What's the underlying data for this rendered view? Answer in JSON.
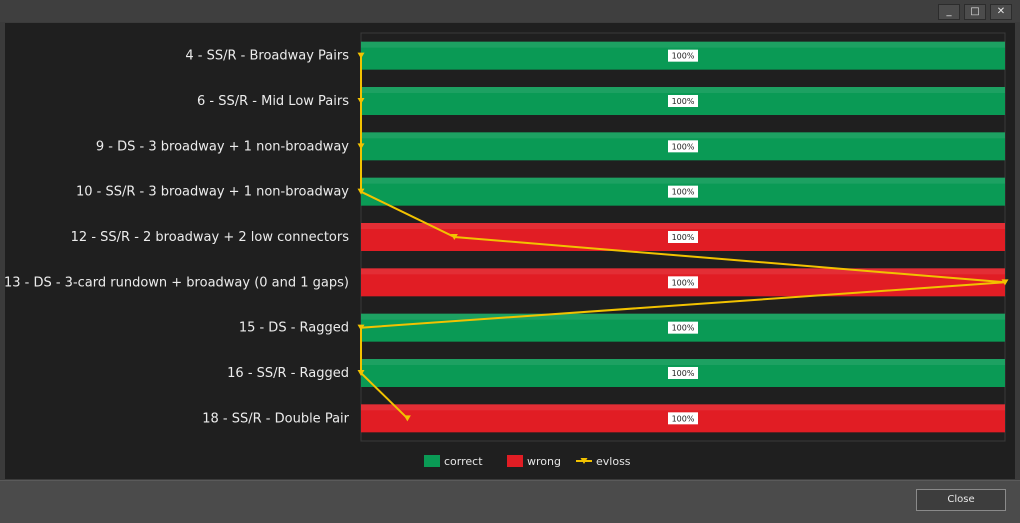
{
  "window": {
    "controls": [
      "_",
      "□",
      "✕"
    ],
    "close_label": "Close"
  },
  "chart_data": {
    "type": "bar",
    "orientation": "horizontal",
    "stacked": true,
    "categories": [
      "4 - SS/R - Broadway Pairs",
      "6 - SS/R - Mid Low Pairs",
      "9 - DS - 3 broadway + 1 non-broadway",
      "10 - SS/R - 3 broadway + 1 non-broadway",
      "12 - SS/R - 2 broadway + 2 low connectors",
      "13 - DS - 3-card rundown + broadway (0 and 1 gaps)",
      "15 - DS - Ragged",
      "16 - SS/R - Ragged",
      "18 - SS/R - Double Pair"
    ],
    "series": [
      {
        "name": "correct",
        "values": [
          100,
          100,
          100,
          100,
          0,
          0,
          100,
          100,
          0
        ]
      },
      {
        "name": "wrong",
        "values": [
          0,
          0,
          0,
          0,
          100,
          100,
          0,
          0,
          100
        ]
      }
    ],
    "bar_labels": [
      "100%",
      "100%",
      "100%",
      "100%",
      "100%",
      "100%",
      "100%",
      "100%",
      "100%"
    ],
    "evloss": {
      "name": "evloss",
      "values": [
        0,
        0,
        0,
        0,
        14.5,
        100,
        0,
        0,
        7.2
      ]
    },
    "xlim": [
      0,
      100
    ],
    "legend_position": "bottom",
    "colors": {
      "correct": "#0a9a55",
      "wrong": "#e11d24",
      "evloss": "#f2c200",
      "background": "#1f1f1f"
    }
  }
}
